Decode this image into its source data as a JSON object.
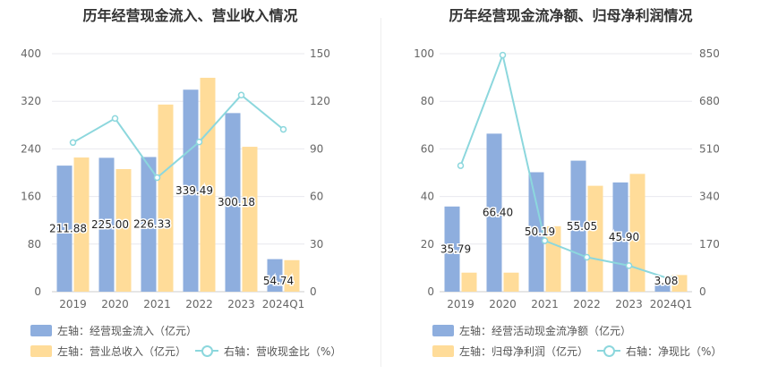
{
  "colors": {
    "bar_primary": "#8eaede",
    "bar_secondary": "#ffdc99",
    "line": "#8cd7dd",
    "grid": "#e8e8ee",
    "axis_text": "#666666"
  },
  "chart_data": [
    {
      "type": "bar",
      "title": "历年经营现金流入、营业收入情况",
      "categories": [
        "2019",
        "2020",
        "2021",
        "2022",
        "2023",
        "2024Q1"
      ],
      "series": [
        {
          "name": "左轴：经营现金流入（亿元）",
          "axis": "left",
          "kind": "bar",
          "values": [
            211.88,
            225.0,
            226.33,
            339.49,
            300.18,
            54.74
          ],
          "labels": [
            "211.88",
            "225.00",
            "226.33",
            "339.49",
            "300.18",
            "54.74"
          ]
        },
        {
          "name": "左轴：营业总收入（亿元）",
          "axis": "left",
          "kind": "bar",
          "values": [
            225.5,
            206.0,
            314.5,
            359.5,
            243.5,
            53.0
          ]
        },
        {
          "name": "右轴：营收现金比（%）",
          "axis": "right",
          "kind": "line",
          "values": [
            94.0,
            109.2,
            71.9,
            94.4,
            123.9,
            102.3
          ]
        }
      ],
      "left_axis": {
        "ylim": [
          0,
          400
        ],
        "ticks": [
          0,
          80,
          160,
          240,
          320,
          400
        ]
      },
      "right_axis": {
        "ylim": [
          0,
          150
        ],
        "ticks": [
          0,
          30,
          60,
          90,
          120,
          150
        ]
      },
      "legend": {
        "row1": [
          "左轴：经营现金流入（亿元）"
        ],
        "row2": [
          "左轴：营业总收入（亿元）",
          "右轴：营收现金比（%）"
        ]
      }
    },
    {
      "type": "bar",
      "title": "历年经营现金流净额、归母净利润情况",
      "categories": [
        "2019",
        "2020",
        "2021",
        "2022",
        "2023",
        "2024Q1"
      ],
      "series": [
        {
          "name": "左轴：经营活动现金流净额（亿元）",
          "axis": "left",
          "kind": "bar",
          "values": [
            35.79,
            66.4,
            50.19,
            55.05,
            45.9,
            3.08
          ],
          "labels": [
            "35.79",
            "66.40",
            "50.19",
            "55.05",
            "45.90",
            "3.08"
          ]
        },
        {
          "name": "左轴：归母净利润（亿元）",
          "axis": "left",
          "kind": "bar",
          "values": [
            8.0,
            8.0,
            27.5,
            44.5,
            49.5,
            7.0
          ]
        },
        {
          "name": "右轴：净现比（%）",
          "axis": "right",
          "kind": "line",
          "values": [
            450,
            845,
            182,
            123,
            93,
            44
          ]
        }
      ],
      "left_axis": {
        "ylim": [
          0,
          100
        ],
        "ticks": [
          0,
          20,
          40,
          60,
          80,
          100
        ]
      },
      "right_axis": {
        "ylim": [
          0,
          850
        ],
        "ticks": [
          0,
          170,
          340,
          510,
          680,
          850
        ]
      },
      "legend": {
        "row1": [
          "左轴：经营活动现金流净额（亿元）"
        ],
        "row2": [
          "左轴：归母净利润（亿元）",
          "右轴：净现比（%）"
        ]
      }
    }
  ]
}
